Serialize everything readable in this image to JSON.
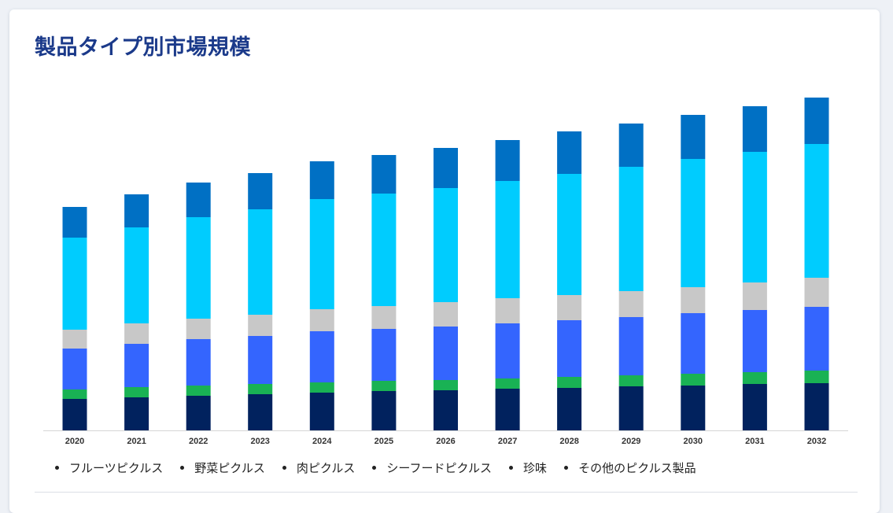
{
  "card": {
    "title": "製品タイプ別市場規模"
  },
  "chart_data": {
    "type": "bar",
    "stacked": true,
    "title": "",
    "xlabel": "",
    "ylabel": "",
    "categories": [
      "2020",
      "2021",
      "2022",
      "2023",
      "2024",
      "2025",
      "2026",
      "2027",
      "2028",
      "2029",
      "2030",
      "2031",
      "2032"
    ],
    "series": [
      {
        "name": "フルーツピクルス",
        "color": "#01225e",
        "values": [
          40,
          42,
          44,
          46,
          48,
          50,
          51,
          53,
          54,
          56,
          57,
          59,
          60
        ]
      },
      {
        "name": "野菜ピクルス",
        "color": "#19b254",
        "values": [
          12,
          13,
          13,
          13,
          13,
          13,
          13,
          13,
          14,
          14,
          15,
          15,
          16
        ]
      },
      {
        "name": "肉ピクルス",
        "color": "#3465fe",
        "values": [
          52,
          55,
          59,
          61,
          65,
          66,
          68,
          70,
          72,
          74,
          77,
          79,
          81
        ]
      },
      {
        "name": "シーフードピクルス",
        "color": "#c8c8c8",
        "values": [
          24,
          26,
          26,
          27,
          28,
          29,
          31,
          32,
          32,
          33,
          33,
          35,
          37
        ]
      },
      {
        "name": "珍味",
        "color": "#00ccfe",
        "values": [
          117,
          122,
          129,
          134,
          140,
          143,
          145,
          149,
          154,
          158,
          163,
          166,
          170
        ]
      },
      {
        "name": "その他のピクルス製品",
        "color": "#0070c4",
        "values": [
          39,
          42,
          44,
          46,
          48,
          49,
          51,
          52,
          54,
          55,
          56,
          58,
          59
        ]
      }
    ],
    "ylim": [
      0,
      430
    ],
    "grid": false,
    "legend_position": "bottom-left"
  }
}
